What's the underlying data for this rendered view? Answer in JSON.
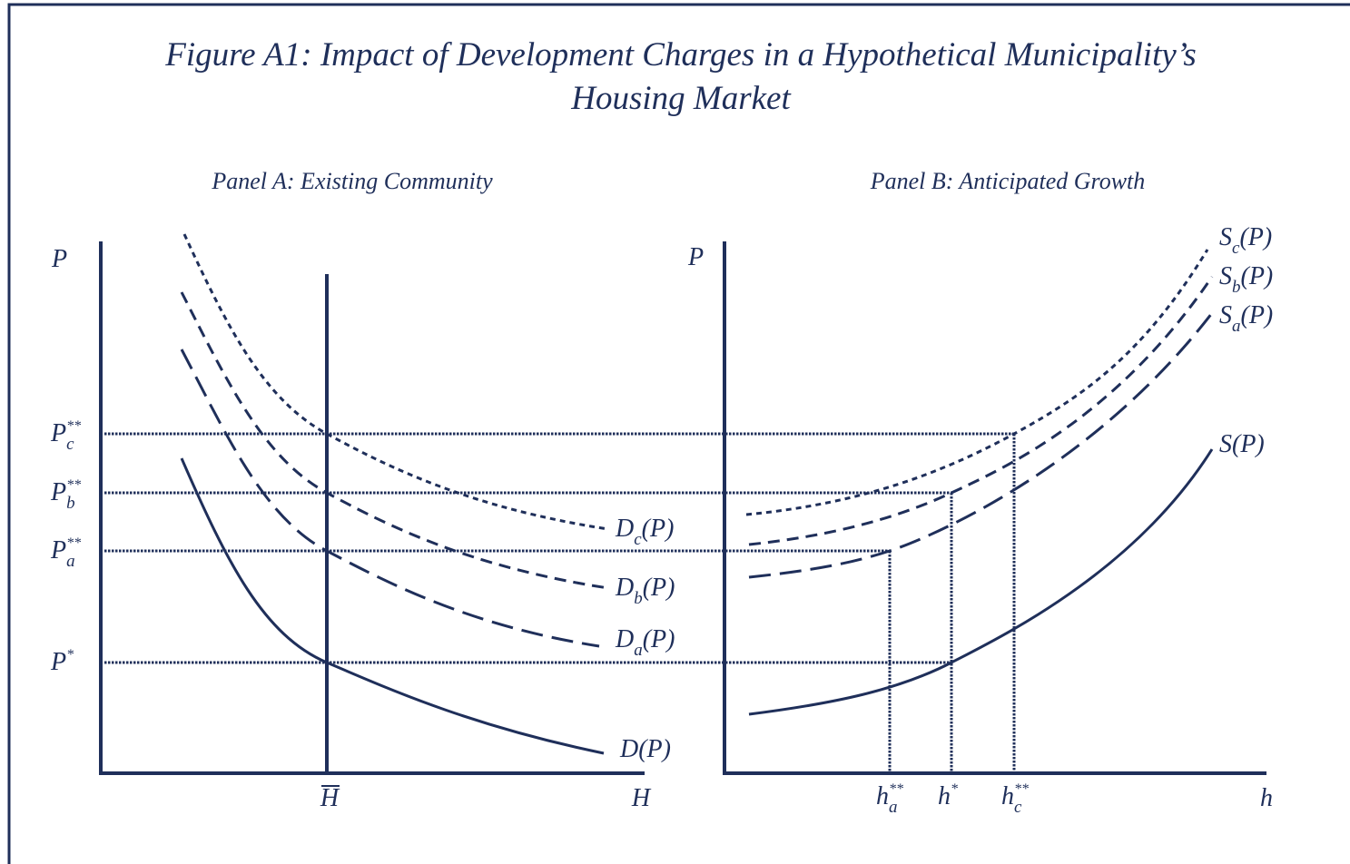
{
  "title": {
    "line1": "Figure A1: Impact of Development Charges in a Hypothetical Municipality’s",
    "line2": "Housing Market"
  },
  "panels": [
    {
      "title": "Panel A: Existing Community",
      "y_axis": "P",
      "x_axis": "H",
      "x_mark": "H",
      "price_labels": [
        {
          "base": "P",
          "sub": "c",
          "sup": "**"
        },
        {
          "base": "P",
          "sub": "b",
          "sup": "**"
        },
        {
          "base": "P",
          "sub": "a",
          "sup": "**"
        },
        {
          "base": "P",
          "sup": "*"
        }
      ],
      "curve_labels": [
        {
          "base": "D",
          "sub": "c",
          "tail": "(P)"
        },
        {
          "base": "D",
          "sub": "b",
          "tail": "(P)"
        },
        {
          "base": "D",
          "sub": "a",
          "tail": "(P)"
        },
        {
          "base": "D(P)"
        }
      ]
    },
    {
      "title": "Panel B: Anticipated Growth",
      "y_axis": "P",
      "x_axis": "h",
      "quantity_labels": [
        {
          "base": "h",
          "sub": "a",
          "sup": "**"
        },
        {
          "base": "h",
          "sup": "*"
        },
        {
          "base": "h",
          "sub": "c",
          "sup": "**"
        }
      ],
      "curve_labels": [
        {
          "base": "S",
          "sub": "c",
          "tail": "(P)"
        },
        {
          "base": "S",
          "sub": "b",
          "tail": "(P)"
        },
        {
          "base": "S",
          "sub": "a",
          "tail": "(P)"
        },
        {
          "base": "S(P)"
        }
      ]
    }
  ]
}
